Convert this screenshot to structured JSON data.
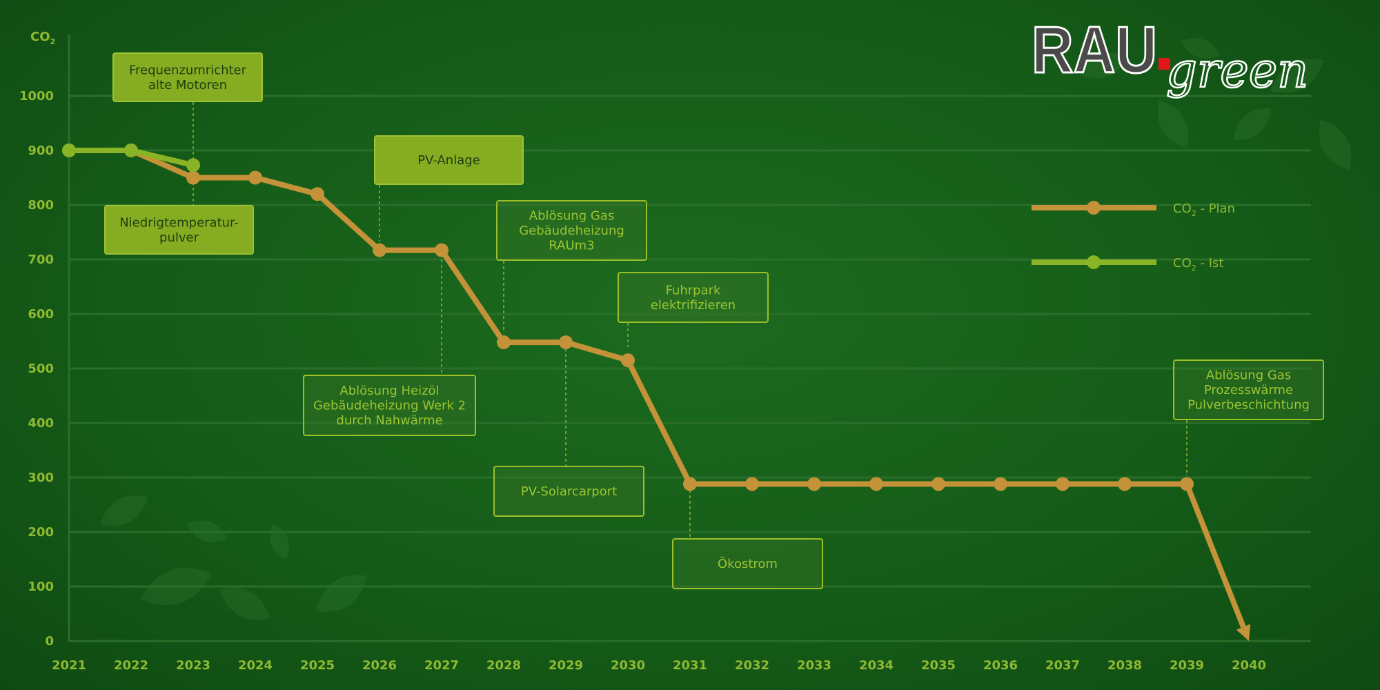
{
  "logo": {
    "brand": "RAU",
    "suffix": "green"
  },
  "colors": {
    "plan": "#c49238",
    "ist": "#88b425",
    "text": "#8fb833",
    "grid": "#2a6e2c"
  },
  "chart_data": {
    "type": "line",
    "ylabel": "CO",
    "ylabel_sub": "2",
    "x": [
      2021,
      2022,
      2023,
      2024,
      2025,
      2026,
      2027,
      2028,
      2029,
      2030,
      2031,
      2032,
      2033,
      2034,
      2035,
      2036,
      2037,
      2038,
      2039,
      2040
    ],
    "xlim": [
      2021,
      2041
    ],
    "ylim": [
      0,
      1100
    ],
    "yticks": [
      0,
      100,
      200,
      300,
      400,
      500,
      600,
      700,
      800,
      900,
      1000
    ],
    "grid": true,
    "legend": "top-right",
    "series": [
      {
        "name": "CO₂ - Plan",
        "x": [
          2021,
          2022,
          2023,
          2024,
          2025,
          2026,
          2027,
          2028,
          2029,
          2030,
          2031,
          2032,
          2033,
          2034,
          2035,
          2036,
          2037,
          2038,
          2039
        ],
        "values": [
          900,
          900,
          850,
          850,
          820,
          717,
          717,
          548,
          548,
          515,
          288,
          288,
          288,
          288,
          288,
          288,
          288,
          288,
          288
        ],
        "arrow_to": [
          2040,
          0
        ]
      },
      {
        "name": "CO₂ - Ist",
        "x": [
          2021,
          2022,
          2023
        ],
        "values": [
          900,
          900,
          873
        ]
      }
    ],
    "legend_entries": [
      {
        "label": "CO",
        "sub": "2",
        "rest": " - Plan"
      },
      {
        "label": "CO",
        "sub": "2",
        "rest": " - Ist"
      }
    ],
    "annotations": [
      {
        "lines": [
          "Frequenzumrichter",
          "alte Motoren"
        ],
        "year": 2023,
        "style": "solid"
      },
      {
        "lines": [
          "Niedrigtemperatur-",
          "pulver"
        ],
        "year": 2023,
        "style": "solid"
      },
      {
        "lines": [
          "PV-Anlage"
        ],
        "year": 2026,
        "style": "solid"
      },
      {
        "lines": [
          "Ablösung Heizöl",
          "Gebäudeheizung Werk 2",
          "durch Nahwärme"
        ],
        "year": 2027,
        "style": "outline"
      },
      {
        "lines": [
          "Ablösung Gas",
          "Gebäudeheizung",
          "RAUm3"
        ],
        "year": 2028,
        "style": "outline"
      },
      {
        "lines": [
          "PV-Solarcarport"
        ],
        "year": 2029,
        "style": "outline"
      },
      {
        "lines": [
          "Fuhrpark",
          "elektrifizieren"
        ],
        "year": 2030,
        "style": "outline"
      },
      {
        "lines": [
          "Ökostrom"
        ],
        "year": 2031,
        "style": "outline"
      },
      {
        "lines": [
          "Ablösung Gas",
          "Prozesswärme",
          "Pulverbeschichtung"
        ],
        "year": 2039,
        "style": "outline"
      }
    ]
  }
}
